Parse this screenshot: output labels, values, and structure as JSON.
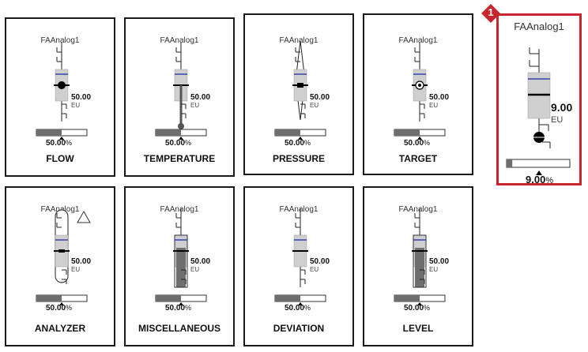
{
  "faceplates": [
    {
      "tag": "FAAnalog1",
      "title": "FLOW",
      "value": "50.00",
      "eu": "EU",
      "percent": "50.00",
      "percent_unit": "%",
      "indicator": "circle",
      "fill_fraction": 0
    },
    {
      "tag": "FAAnalog1",
      "title": "TEMPERATURE",
      "value": "50.00",
      "eu": "EU",
      "percent": "50.00",
      "percent_unit": "%",
      "indicator": "thermometer",
      "fill_fraction": 0
    },
    {
      "tag": "FAAnalog1",
      "title": "PRESSURE",
      "value": "50.00",
      "eu": "EU",
      "percent": "50.00",
      "percent_unit": "%",
      "indicator": "diamond",
      "fill_fraction": 0
    },
    {
      "tag": "FAAnalog1",
      "title": "TARGET",
      "value": "50.00",
      "eu": "EU",
      "percent": "50.00",
      "percent_unit": "%",
      "indicator": "target",
      "fill_fraction": 0
    },
    {
      "tag": "FAAnalog1",
      "title": "ANALYZER",
      "value": "50.00",
      "eu": "EU",
      "percent": "50.00",
      "percent_unit": "%",
      "indicator": "capsule",
      "fill_fraction": 0
    },
    {
      "tag": "FAAnalog1",
      "title": "MISCELLANEOUS",
      "value": "50.00",
      "eu": "EU",
      "percent": "50.00",
      "percent_unit": "%",
      "indicator": "fill",
      "fill_fraction": 0.5
    },
    {
      "tag": "FAAnalog1",
      "title": "DEVIATION",
      "value": "50.00",
      "eu": "EU",
      "percent": "50.00",
      "percent_unit": "%",
      "indicator": "tick",
      "fill_fraction": 0
    },
    {
      "tag": "FAAnalog1",
      "title": "LEVEL",
      "value": "50.00",
      "eu": "EU",
      "percent": "50.00",
      "percent_unit": "%",
      "indicator": "fill",
      "fill_fraction": 0.5
    }
  ],
  "highlighted": {
    "badge": "1",
    "tag": "FAAnalog1",
    "value": "9.00",
    "eu": "EU",
    "percent": "9.00",
    "percent_unit": "%",
    "bar_fraction": 0.09
  },
  "colors": {
    "highlight": "#c8262c",
    "setpoint": "#3344aa",
    "fill": "#6e6e6e",
    "band": "#cfcfcf"
  },
  "icons": {
    "analyzer_alarm": "triangle-outline-icon"
  }
}
